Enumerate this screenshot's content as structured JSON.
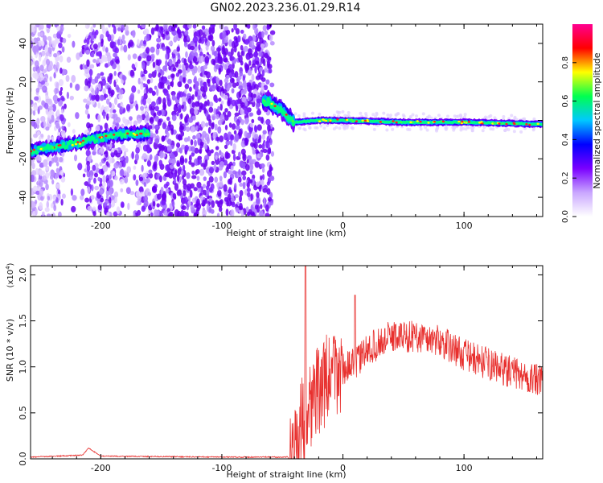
{
  "title": "GN02.2023.236.01.29.R14",
  "chart_data": [
    {
      "type": "heatmap",
      "xlabel": "Height of straight line (km)",
      "ylabel": "Frequency (Hz)",
      "xlim": [
        -258,
        165
      ],
      "ylim": [
        -50,
        50
      ],
      "xticks": [
        -200,
        -100,
        0,
        100
      ],
      "yticks": [
        -40,
        -20,
        0,
        20,
        40
      ],
      "colorbar": {
        "label": "Normalized spectral amplitude",
        "range": [
          0,
          1
        ],
        "ticks": [
          0.0,
          0.2,
          0.4,
          0.6,
          0.8
        ],
        "colors": [
          "#ffffff",
          "#c9a6ff",
          "#7a00ff",
          "#0000ff",
          "#00c8ff",
          "#00ff50",
          "#ffff00",
          "#ff0000",
          "#ff0090"
        ]
      },
      "ridge": [
        {
          "x": -258,
          "f": -16
        },
        {
          "x": -220,
          "f": -12
        },
        {
          "x": -200,
          "f": -9
        },
        {
          "x": -180,
          "f": -7
        },
        {
          "x": -163,
          "f": -7
        },
        {
          "x": -62,
          "f": 10
        },
        {
          "x": -50,
          "f": 5
        },
        {
          "x": -40,
          "f": -1
        },
        {
          "x": -20,
          "f": 0
        },
        {
          "x": 0,
          "f": 0
        },
        {
          "x": 50,
          "f": -1
        },
        {
          "x": 100,
          "f": -1
        },
        {
          "x": 165,
          "f": -2
        }
      ]
    },
    {
      "type": "line",
      "xlabel": "Height of straight line (km)",
      "ylabel": "SNR (10 * v/v)",
      "yscale_label": "(x10",
      "yscale_exp": "4",
      "yscale_close": ")",
      "xlim": [
        -258,
        165
      ],
      "ylim": [
        0,
        2.1
      ],
      "xticks": [
        -200,
        -100,
        0,
        100
      ],
      "yticks": [
        0.0,
        0.5,
        1.0,
        1.5,
        2.0
      ],
      "ytick_labels": [
        "0.0",
        "0.5",
        "1.0",
        "1.5",
        "2.0"
      ],
      "color": "#e8302e",
      "envelope": [
        {
          "x": -258,
          "y": 0.02
        },
        {
          "x": -215,
          "y": 0.04
        },
        {
          "x": -210,
          "y": 0.12
        },
        {
          "x": -200,
          "y": 0.03
        },
        {
          "x": -100,
          "y": 0.02
        },
        {
          "x": -45,
          "y": 0.02
        },
        {
          "x": -38,
          "y": 0.3
        },
        {
          "x": -30,
          "y": 0.6
        },
        {
          "x": -20,
          "y": 0.8
        },
        {
          "x": -10,
          "y": 0.95
        },
        {
          "x": 10,
          "y": 1.05
        },
        {
          "x": 20,
          "y": 1.2
        },
        {
          "x": 40,
          "y": 1.35
        },
        {
          "x": 60,
          "y": 1.35
        },
        {
          "x": 80,
          "y": 1.3
        },
        {
          "x": 100,
          "y": 1.15
        },
        {
          "x": 130,
          "y": 1.0
        },
        {
          "x": 165,
          "y": 0.85
        }
      ],
      "peaks": [
        {
          "x": -31,
          "y": 2.1
        },
        {
          "x": 10,
          "y": 1.78
        }
      ]
    }
  ]
}
